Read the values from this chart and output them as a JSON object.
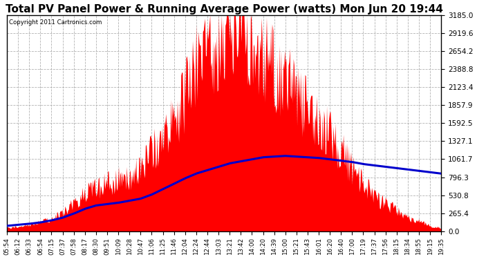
{
  "title": "Total PV Panel Power & Running Average Power (watts) Mon Jun 20 19:44",
  "copyright": "Copyright 2011 Cartronics.com",
  "yticks": [
    0.0,
    265.4,
    530.8,
    796.3,
    1061.7,
    1327.1,
    1592.5,
    1857.9,
    2123.4,
    2388.8,
    2654.2,
    2919.6,
    3185.0
  ],
  "xtick_labels": [
    "05:54",
    "06:12",
    "06:33",
    "06:54",
    "07:15",
    "07:37",
    "07:58",
    "08:17",
    "08:30",
    "09:51",
    "10:09",
    "10:28",
    "10:47",
    "11:06",
    "11:25",
    "11:46",
    "12:04",
    "12:24",
    "12:44",
    "13:03",
    "13:21",
    "13:42",
    "14:00",
    "14:20",
    "14:39",
    "15:00",
    "15:21",
    "15:43",
    "16:01",
    "16:20",
    "16:40",
    "17:00",
    "17:19",
    "17:37",
    "17:56",
    "18:15",
    "18:34",
    "18:55",
    "19:15",
    "19:35"
  ],
  "pv_profile": [
    50,
    70,
    100,
    140,
    180,
    280,
    420,
    560,
    650,
    700,
    750,
    820,
    900,
    1200,
    1400,
    1600,
    2000,
    2400,
    2600,
    2800,
    3100,
    3185,
    2800,
    2600,
    2400,
    2200,
    2000,
    1800,
    1600,
    1400,
    1200,
    900,
    700,
    500,
    400,
    300,
    200,
    150,
    80,
    50
  ],
  "running_avg_vals": [
    80,
    95,
    110,
    130,
    160,
    200,
    260,
    330,
    380,
    400,
    420,
    450,
    480,
    540,
    620,
    700,
    780,
    850,
    900,
    950,
    1000,
    1030,
    1060,
    1090,
    1100,
    1110,
    1100,
    1090,
    1080,
    1060,
    1040,
    1020,
    990,
    970,
    950,
    930,
    910,
    890,
    870,
    850
  ],
  "background_color": "#ffffff",
  "plot_bg_color": "#ffffff",
  "grid_color": "#aaaaaa",
  "fill_color": "#ff0000",
  "line_color": "#0000cc",
  "title_fontsize": 11,
  "ylim": [
    0,
    3185.0
  ],
  "noise_seed": 42
}
